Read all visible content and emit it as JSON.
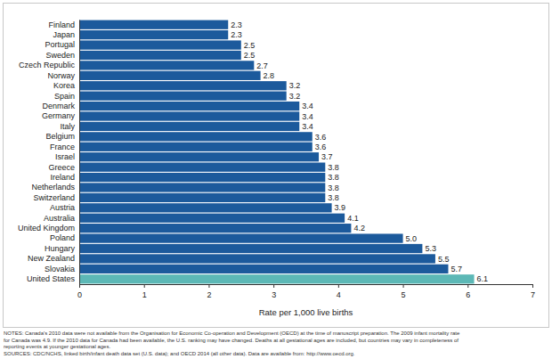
{
  "chart_data": {
    "type": "bar",
    "orientation": "horizontal",
    "categories": [
      "Finland",
      "Japan",
      "Portugal",
      "Sweden",
      "Czech Republic",
      "Norway",
      "Korea",
      "Spain",
      "Denmark",
      "Germany",
      "Italy",
      "Belgium",
      "France",
      "Israel",
      "Greece",
      "Ireland",
      "Netherlands",
      "Switzerland",
      "Austria",
      "Australia",
      "United Kingdom",
      "Poland",
      "Hungary",
      "New Zealand",
      "Slovakia",
      "United States"
    ],
    "values": [
      2.3,
      2.3,
      2.5,
      2.5,
      2.7,
      2.8,
      3.2,
      3.2,
      3.4,
      3.4,
      3.4,
      3.6,
      3.6,
      3.7,
      3.8,
      3.8,
      3.8,
      3.8,
      3.9,
      4.1,
      4.2,
      5.0,
      5.3,
      5.5,
      5.7,
      6.1
    ],
    "value_labels": [
      "2.3",
      "2.3",
      "2.5",
      "2.5",
      "2.7",
      "2.8",
      "3.2",
      "3.2",
      "3.4",
      "3.4",
      "3.4",
      "3.6",
      "3.6",
      "3.7",
      "3.8",
      "3.8",
      "3.8",
      "3.8",
      "3.9",
      "4.1",
      "4.2",
      "5.0",
      "5.3",
      "5.5",
      "5.7",
      "6.1"
    ],
    "colors": [
      "#1c5a9c",
      "#1c5a9c",
      "#1c5a9c",
      "#1c5a9c",
      "#1c5a9c",
      "#1c5a9c",
      "#1c5a9c",
      "#1c5a9c",
      "#1c5a9c",
      "#1c5a9c",
      "#1c5a9c",
      "#1c5a9c",
      "#1c5a9c",
      "#1c5a9c",
      "#1c5a9c",
      "#1c5a9c",
      "#1c5a9c",
      "#1c5a9c",
      "#1c5a9c",
      "#1c5a9c",
      "#1c5a9c",
      "#1c5a9c",
      "#1c5a9c",
      "#1c5a9c",
      "#1c5a9c",
      "#5cb8b6"
    ],
    "xlim": [
      0,
      7
    ],
    "xticks": [
      0,
      1,
      2,
      3,
      4,
      5,
      6,
      7
    ],
    "x_label": "Rate per 1,000 live births",
    "data_labels": true,
    "grid": false,
    "notes": [
      "NOTES: Canada's 2010 data were not available from the Organisation for Economic Co-operation and Development (OECD) at the time of manuscript preparation. The 2009 infant mortality rate",
      "for Canada was 4.9. If the 2010 data for Canada had been available, the U.S. ranking may have changed. Deaths at all gestational ages are included, but countries may vary in completeness of",
      "reporting events at younger gestational ages."
    ],
    "sources": "SOURCES: CDC/NCHS, linked birth/infant death data set (U.S. data); and OECD 2014 (all other data). Data are available from: http://www.oecd.org."
  }
}
